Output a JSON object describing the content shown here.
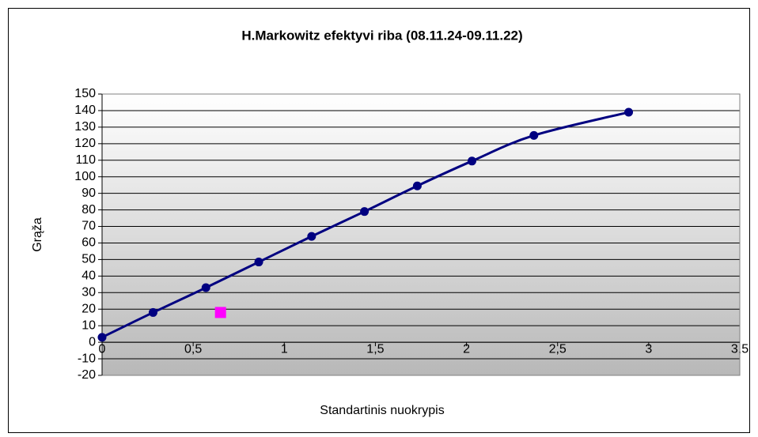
{
  "chart_data": {
    "type": "scatter",
    "title": "H.Markowitz efektyvi riba (08.11.24-09.11.22)",
    "x_label": "Standartinis nuokrypis",
    "y_label": "Grąža",
    "series": [
      {
        "color": "#000080",
        "line": true,
        "smooth": true,
        "marker": "circle",
        "x": [
          0,
          0.28,
          0.57,
          0.86,
          1.15,
          1.44,
          1.73,
          2.03,
          2.37,
          2.89
        ],
        "values": [
          3,
          18,
          33,
          48.5,
          64,
          79,
          94.5,
          109.5,
          125,
          139
        ]
      },
      {
        "color": "#ff00ff",
        "line": false,
        "marker": "square",
        "x": [
          0.65
        ],
        "values": [
          18
        ]
      }
    ],
    "xlim": [
      0,
      3.5
    ],
    "xticks": [
      0,
      {
        "value": 0.5,
        "label": "0,5"
      },
      1,
      {
        "value": 1.5,
        "label": "1,5"
      },
      2,
      {
        "value": 2.5,
        "label": "2,5"
      },
      3,
      {
        "value": 3.5,
        "label": "3,5"
      }
    ],
    "ylim": [
      -20,
      150
    ],
    "yticks": [
      -20,
      -10,
      0,
      10,
      20,
      30,
      40,
      50,
      60,
      70,
      80,
      90,
      100,
      110,
      120,
      130,
      140,
      150
    ],
    "grid": true
  }
}
